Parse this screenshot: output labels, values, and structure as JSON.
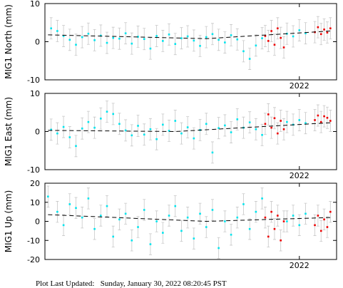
{
  "chart_data": [
    {
      "type": "scatter",
      "ylabel": "MIG1 North (mm)",
      "xlim": [
        2017.9,
        2022.6
      ],
      "xticks": [
        2022
      ],
      "ylim": [
        -10,
        10
      ],
      "yticks": [
        -10,
        0,
        10
      ],
      "series": [
        {
          "color": "#00e5ee",
          "error": 2.8,
          "x": [
            2018.0,
            2018.1,
            2018.2,
            2018.3,
            2018.4,
            2018.5,
            2018.6,
            2018.7,
            2018.8,
            2018.9,
            2019.0,
            2019.1,
            2019.2,
            2019.3,
            2019.4,
            2019.5,
            2019.6,
            2019.7,
            2019.8,
            2019.9,
            2020.0,
            2020.1,
            2020.2,
            2020.3,
            2020.4,
            2020.5,
            2020.6,
            2020.7,
            2020.8,
            2020.9,
            2021.0,
            2021.1,
            2021.2,
            2021.3,
            2021.4,
            2021.8,
            2021.9,
            2022.0,
            2022.1
          ],
          "values": [
            3.5,
            2.8,
            1.5,
            0.5,
            -0.8,
            1.2,
            2.1,
            0.4,
            1.6,
            -0.3,
            1.0,
            0.8,
            2.2,
            -0.5,
            1.3,
            0.7,
            -1.8,
            1.5,
            0.2,
            1.9,
            -0.6,
            0.9,
            1.4,
            0.3,
            -1.1,
            1.2,
            2.0,
            0.5,
            -0.2,
            1.7,
            0.6,
            -2.5,
            -4.5,
            -1.0,
            0.9,
            2.1,
            1.4,
            3.0,
            2.2
          ]
        },
        {
          "color": "#ee0000",
          "error": 2.8,
          "x": [
            2021.45,
            2021.5,
            2021.55,
            2021.6,
            2021.65,
            2021.7,
            2021.75,
            2022.25,
            2022.3,
            2022.35,
            2022.4,
            2022.45,
            2022.5
          ],
          "values": [
            1.5,
            0.2,
            2.8,
            -0.8,
            3.5,
            1.0,
            -1.5,
            2.5,
            3.8,
            2.0,
            3.2,
            2.4,
            3.5
          ]
        },
        {
          "color": "#000000",
          "style": "dashed",
          "x": [
            2017.95,
            2020.5,
            2022.5
          ],
          "values": [
            1.8,
            0.8,
            2.8
          ]
        }
      ]
    },
    {
      "type": "scatter",
      "ylabel": "MIG1 East (mm)",
      "xlim": [
        2017.9,
        2022.6
      ],
      "xticks": [
        2022
      ],
      "ylim": [
        -10,
        10
      ],
      "yticks": [
        -10,
        0,
        10
      ],
      "series": [
        {
          "color": "#00e5ee",
          "error": 2.8,
          "x": [
            2018.0,
            2018.1,
            2018.2,
            2018.3,
            2018.4,
            2018.5,
            2018.6,
            2018.7,
            2018.8,
            2018.9,
            2019.0,
            2019.1,
            2019.2,
            2019.3,
            2019.4,
            2019.5,
            2019.6,
            2019.7,
            2019.8,
            2019.9,
            2020.0,
            2020.1,
            2020.2,
            2020.3,
            2020.4,
            2020.5,
            2020.6,
            2020.7,
            2020.8,
            2020.9,
            2021.0,
            2021.1,
            2021.2,
            2021.3,
            2021.4,
            2021.8,
            2021.9,
            2022.0,
            2022.1
          ],
          "values": [
            0.5,
            -0.5,
            1.2,
            -1.5,
            -3.8,
            0.8,
            2.5,
            1.0,
            3.4,
            5.2,
            4.6,
            2.0,
            0.3,
            -1.0,
            1.5,
            -0.8,
            0.6,
            -2.0,
            1.8,
            0.2,
            2.8,
            -0.5,
            1.1,
            -1.8,
            0.4,
            2.0,
            -5.5,
            0.9,
            1.6,
            -0.2,
            3.2,
            1.0,
            2.4,
            0.6,
            -0.9,
            2.5,
            1.8,
            3.0,
            2.2
          ]
        },
        {
          "color": "#ee0000",
          "error": 2.8,
          "x": [
            2021.45,
            2021.5,
            2021.55,
            2021.6,
            2021.65,
            2021.7,
            2021.75,
            2022.25,
            2022.3,
            2022.35,
            2022.4,
            2022.45,
            2022.5
          ],
          "values": [
            2.0,
            4.5,
            1.0,
            3.5,
            -0.5,
            2.8,
            0.6,
            3.0,
            4.2,
            2.5,
            4.0,
            3.6,
            2.8
          ]
        },
        {
          "color": "#000000",
          "style": "dashed",
          "x": [
            2017.95,
            2020.0,
            2022.5
          ],
          "values": [
            0.3,
            0.0,
            2.3
          ]
        }
      ]
    },
    {
      "type": "scatter",
      "ylabel": "MIG1 Up (mm)",
      "xlim": [
        2017.9,
        2022.6
      ],
      "xticks": [
        2022
      ],
      "ylim": [
        -20,
        20
      ],
      "yticks": [
        -20,
        -10,
        0,
        10,
        20
      ],
      "series": [
        {
          "color": "#00e5ee",
          "error": 5.5,
          "x": [
            2017.95,
            2018.1,
            2018.2,
            2018.3,
            2018.4,
            2018.5,
            2018.6,
            2018.7,
            2018.8,
            2018.9,
            2019.0,
            2019.1,
            2019.2,
            2019.3,
            2019.4,
            2019.5,
            2019.6,
            2019.7,
            2019.8,
            2019.9,
            2020.0,
            2020.1,
            2020.2,
            2020.3,
            2020.4,
            2020.5,
            2020.6,
            2020.7,
            2020.8,
            2020.9,
            2021.0,
            2021.1,
            2021.2,
            2021.3,
            2021.4,
            2021.8,
            2021.9,
            2022.0,
            2022.1
          ],
          "values": [
            13,
            5.0,
            -2.0,
            9.0,
            7.0,
            2.0,
            12.0,
            -4.0,
            3.0,
            8.0,
            -8.0,
            1.0,
            4.0,
            -10.0,
            -3.0,
            6.0,
            -12.0,
            0.0,
            -6.0,
            3.0,
            8.0,
            -5.0,
            2.0,
            -9.0,
            4.0,
            -3.0,
            6.0,
            -14.0,
            0.0,
            -7.0,
            2.0,
            9.0,
            -4.0,
            5.0,
            12.0,
            0.0,
            3.0,
            -2.0,
            4.0
          ]
        },
        {
          "color": "#ee0000",
          "error": 5.5,
          "x": [
            2021.45,
            2021.5,
            2021.55,
            2021.6,
            2021.65,
            2021.7,
            2021.75,
            2022.25,
            2022.3,
            2022.35,
            2022.4,
            2022.45,
            2022.5
          ],
          "values": [
            2.0,
            -8.0,
            5.0,
            -4.0,
            3.0,
            -10.0,
            0.0,
            -2.0,
            3.0,
            -5.0,
            1.0,
            -3.0,
            5.0
          ]
        },
        {
          "color": "#000000",
          "style": "dashed",
          "x": [
            2017.95,
            2020.5,
            2022.5
          ],
          "values": [
            3.5,
            0.0,
            2.0
          ]
        }
      ]
    }
  ],
  "footer": "Plot Last Updated:   Sunday, January 30, 2022 08:20:45 PST"
}
